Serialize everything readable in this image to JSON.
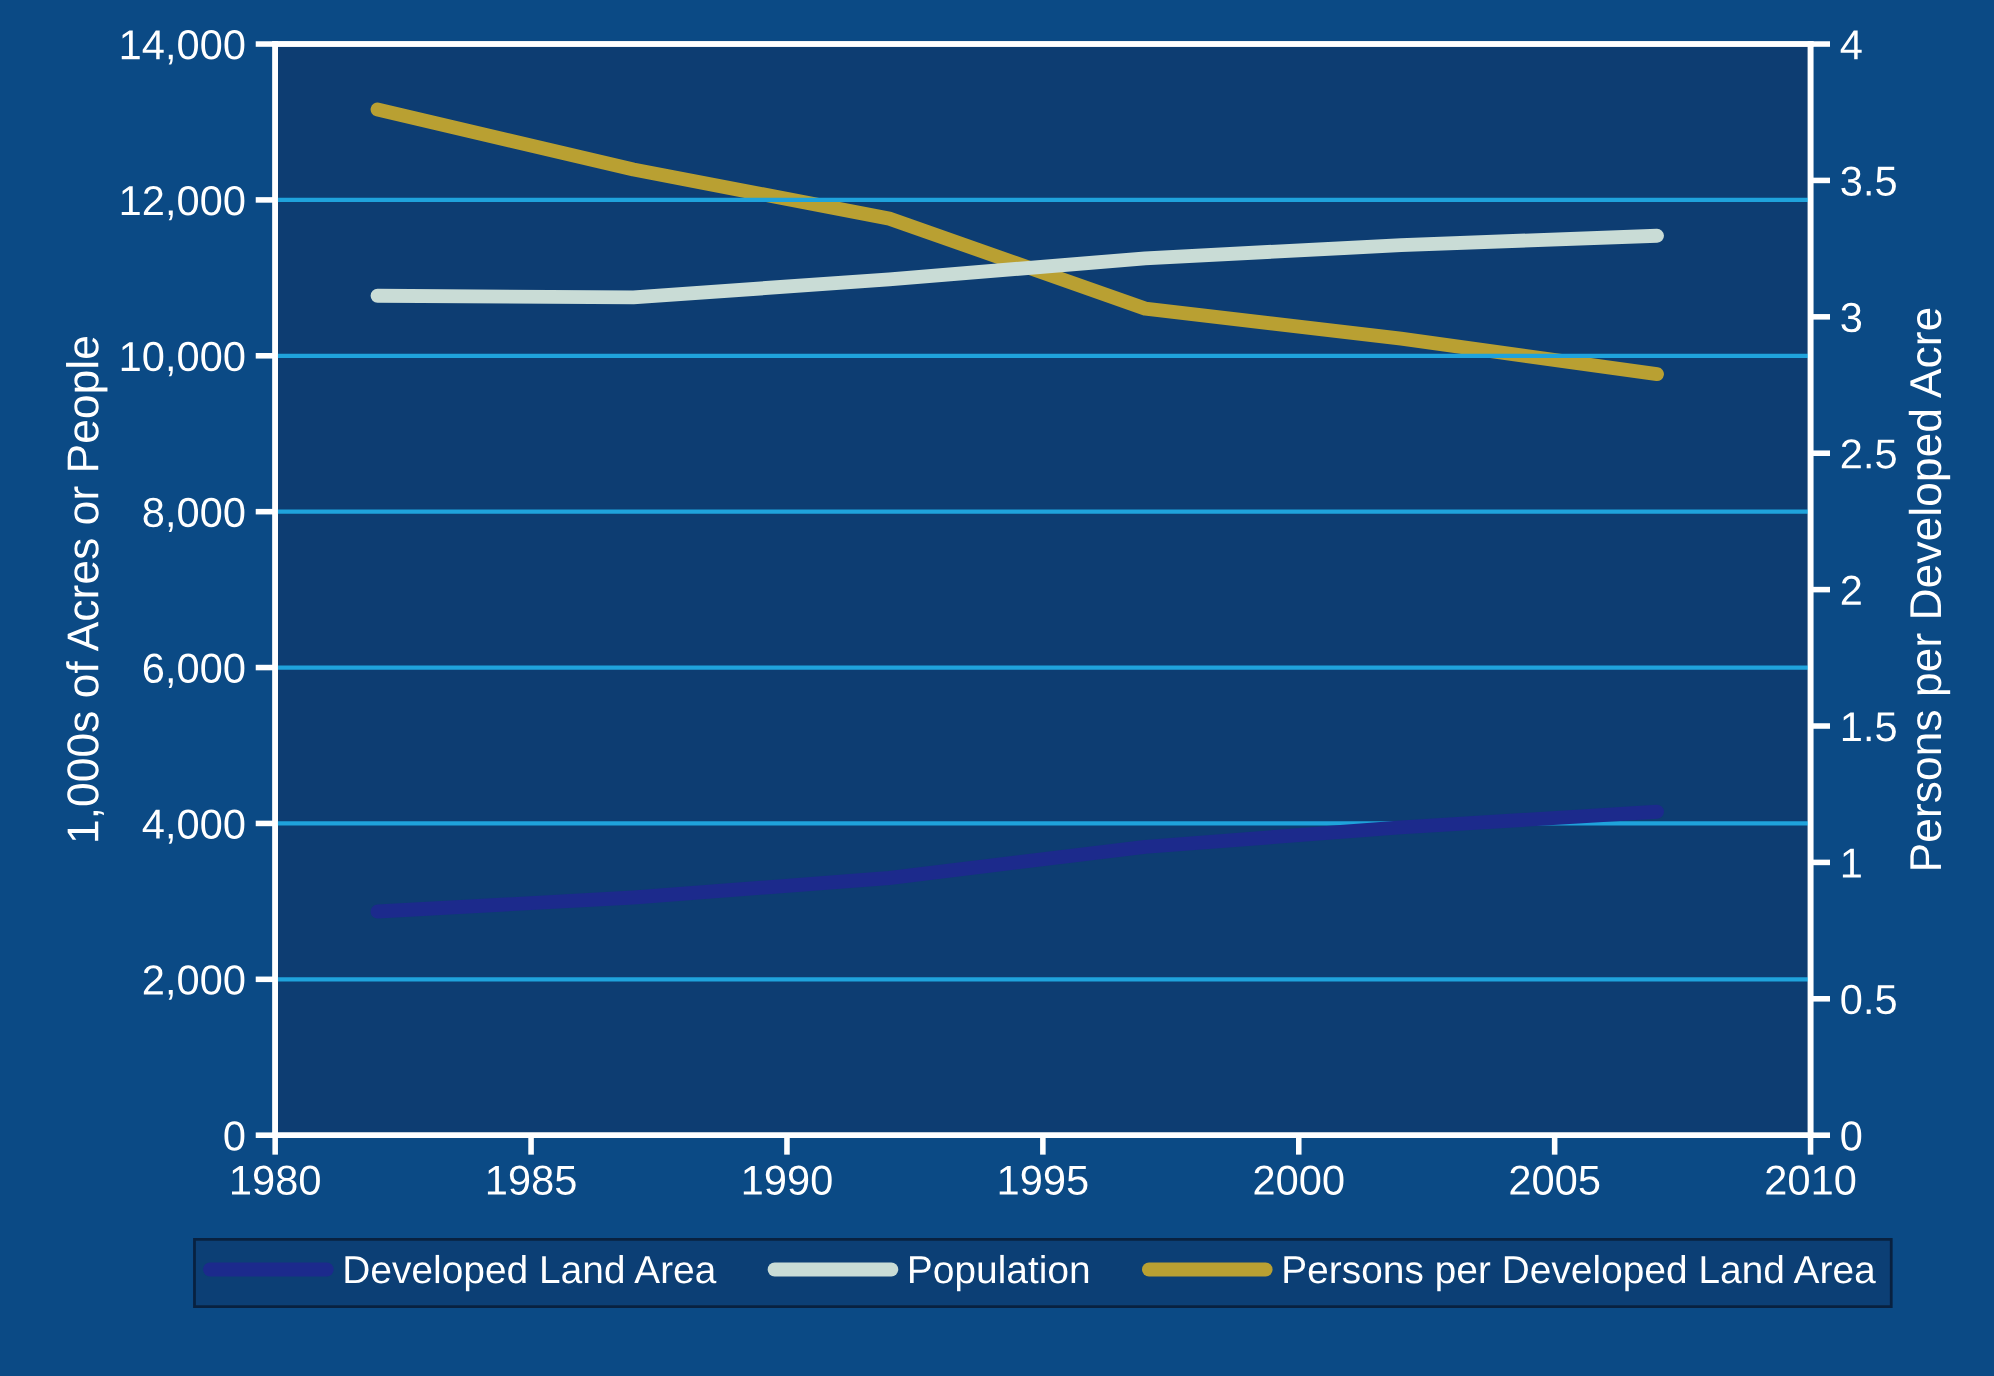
{
  "chart_data": {
    "type": "line",
    "ylabel": "1,000s of Acres or People",
    "y2label": "Persons per Developed Acre",
    "x": [
      1982,
      1987,
      1992,
      1997,
      2002,
      2007
    ],
    "series": [
      {
        "name": "Developed Land Area",
        "color": "#1c2a8c",
        "values": [
          2870,
          3050,
          3300,
          3700,
          3950,
          4150
        ]
      },
      {
        "name": "Population",
        "color": "#c9dcd6",
        "values": [
          10770,
          10750,
          10980,
          11250,
          11420,
          11540
        ]
      },
      {
        "name": "Persons per Developed Land Area",
        "color": "#b9a032",
        "axis": "y2",
        "values": [
          3.76,
          3.54,
          3.36,
          3.03,
          2.92,
          2.79
        ]
      }
    ],
    "xlim": [
      1980,
      2010
    ],
    "xticks": [
      1980,
      1985,
      1990,
      1995,
      2000,
      2005,
      2010
    ],
    "ylim": [
      0,
      14000
    ],
    "yticks": [
      {
        "value": 0,
        "label": "0"
      },
      {
        "value": 2000,
        "label": "2,000"
      },
      {
        "value": 4000,
        "label": "4,000"
      },
      {
        "value": 6000,
        "label": "6,000"
      },
      {
        "value": 8000,
        "label": "8,000"
      },
      {
        "value": 10000,
        "label": "10,000"
      },
      {
        "value": 12000,
        "label": "12,000"
      },
      {
        "value": 14000,
        "label": "14,000"
      }
    ],
    "y2lim": [
      0,
      4
    ],
    "y2ticks": [
      0,
      0.5,
      1,
      1.5,
      2,
      2.5,
      3,
      3.5,
      4
    ],
    "grid": "y",
    "legend": "bottom",
    "marker": "none",
    "line_style": "solid"
  }
}
